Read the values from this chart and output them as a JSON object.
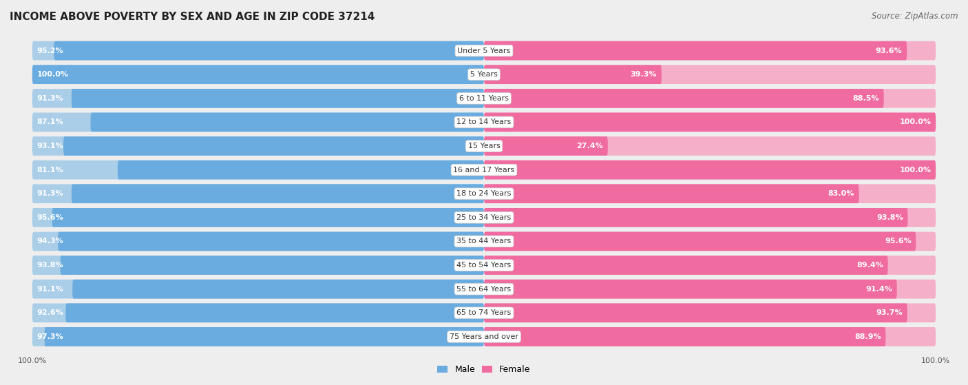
{
  "title": "INCOME ABOVE POVERTY BY SEX AND AGE IN ZIP CODE 37214",
  "source": "Source: ZipAtlas.com",
  "categories": [
    "Under 5 Years",
    "5 Years",
    "6 to 11 Years",
    "12 to 14 Years",
    "15 Years",
    "16 and 17 Years",
    "18 to 24 Years",
    "25 to 34 Years",
    "35 to 44 Years",
    "45 to 54 Years",
    "55 to 64 Years",
    "65 to 74 Years",
    "75 Years and over"
  ],
  "male_values": [
    95.2,
    100.0,
    91.3,
    87.1,
    93.1,
    81.1,
    91.3,
    95.6,
    94.3,
    93.8,
    91.1,
    92.6,
    97.3
  ],
  "female_values": [
    93.6,
    39.3,
    88.5,
    100.0,
    27.4,
    100.0,
    83.0,
    93.8,
    95.6,
    89.4,
    91.4,
    93.7,
    88.9
  ],
  "male_color": "#6aabe0",
  "male_color_light": "#aacde8",
  "female_color": "#f06ba0",
  "female_color_light": "#f5afc8",
  "male_label": "Male",
  "female_label": "Female",
  "background_color": "#eeeeee",
  "bar_bg_color": "#e8e8e8",
  "row_bg_color": "#f8f8f8",
  "title_fontsize": 11,
  "source_fontsize": 8.5,
  "label_fontsize": 8,
  "category_fontsize": 8
}
